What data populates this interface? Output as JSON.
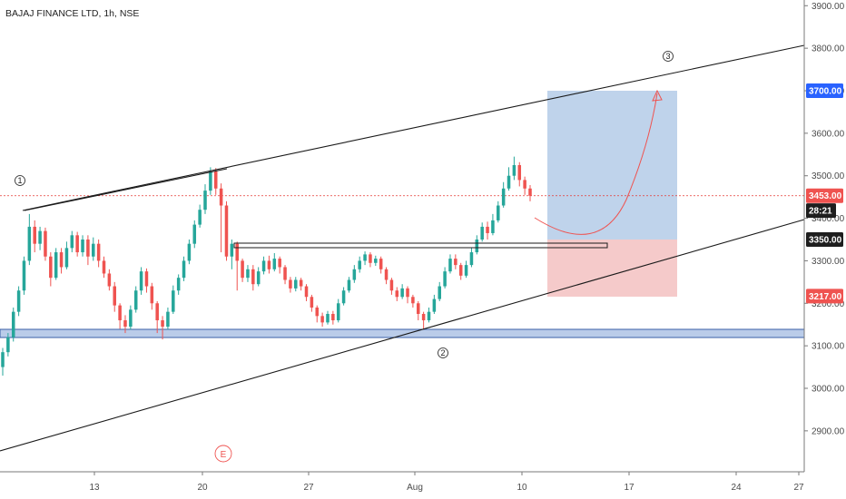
{
  "title": "BAJAJ FINANCE LTD, 1h, NSE",
  "colors": {
    "up": "#26a69a",
    "down": "#ef5350",
    "line": "#1a1a1a",
    "support_band": "#b3c6e7",
    "target_zone": "#a9c4e4",
    "stop_zone": "#f2b8b8",
    "current_price": "#e53935",
    "price_tag_blue": "#2962ff",
    "price_tag_dark": "#1e1e1e",
    "price_tag_red": "#ef5350"
  },
  "chart_data": {
    "type": "candlestick",
    "price_axis": {
      "ticks": [
        "3900.00",
        "3800.00",
        "3700.00",
        "3600.00",
        "3500.00",
        "3400.00",
        "3300.00",
        "3200.00",
        "3100.00",
        "3000.00",
        "2900.00"
      ],
      "range": [
        2810,
        3915
      ]
    },
    "time_axis": {
      "ticks": [
        "13",
        "20",
        "27",
        "Aug",
        "10",
        "17",
        "24",
        "27"
      ]
    },
    "price_tags": [
      {
        "label": "3700.00",
        "price": 3700,
        "color": "#2962ff"
      },
      {
        "label": "3453.00",
        "price": 3453,
        "color": "#ef5350"
      },
      {
        "label": "28:21",
        "price": 3418,
        "color": "#1e1e1e"
      },
      {
        "label": "3350.00",
        "price": 3350,
        "color": "#1e1e1e"
      },
      {
        "label": "3217.00",
        "price": 3217,
        "color": "#ef5350"
      }
    ],
    "current_price": 3453,
    "wave_labels": [
      "1",
      "2",
      "3"
    ],
    "event_marker": "E",
    "candles": [
      [
        3050,
        3085,
        3030,
        3095
      ],
      [
        3085,
        3120,
        3075,
        3130
      ],
      [
        3120,
        3180,
        3110,
        3190
      ],
      [
        3180,
        3230,
        3170,
        3240
      ],
      [
        3230,
        3300,
        3220,
        3310
      ],
      [
        3300,
        3380,
        3290,
        3410
      ],
      [
        3380,
        3340,
        3320,
        3395
      ],
      [
        3340,
        3370,
        3325,
        3380
      ],
      [
        3370,
        3310,
        3300,
        3378
      ],
      [
        3310,
        3260,
        3240,
        3320
      ],
      [
        3260,
        3320,
        3255,
        3330
      ],
      [
        3320,
        3285,
        3270,
        3330
      ],
      [
        3285,
        3330,
        3280,
        3345
      ],
      [
        3330,
        3360,
        3320,
        3370
      ],
      [
        3360,
        3320,
        3310,
        3368
      ],
      [
        3320,
        3350,
        3310,
        3360
      ],
      [
        3350,
        3310,
        3290,
        3360
      ],
      [
        3310,
        3340,
        3300,
        3355
      ],
      [
        3340,
        3300,
        3285,
        3350
      ],
      [
        3300,
        3270,
        3260,
        3310
      ],
      [
        3270,
        3240,
        3230,
        3280
      ],
      [
        3240,
        3195,
        3180,
        3250
      ],
      [
        3195,
        3160,
        3140,
        3200
      ],
      [
        3160,
        3145,
        3130,
        3172
      ],
      [
        3145,
        3185,
        3138,
        3195
      ],
      [
        3185,
        3230,
        3178,
        3240
      ],
      [
        3230,
        3275,
        3220,
        3285
      ],
      [
        3275,
        3240,
        3225,
        3282
      ],
      [
        3240,
        3200,
        3185,
        3248
      ],
      [
        3200,
        3160,
        3130,
        3205
      ],
      [
        3160,
        3145,
        3115,
        3170
      ],
      [
        3145,
        3180,
        3138,
        3190
      ],
      [
        3180,
        3230,
        3175,
        3242
      ],
      [
        3230,
        3260,
        3220,
        3268
      ],
      [
        3260,
        3300,
        3252,
        3310
      ],
      [
        3300,
        3340,
        3292,
        3350
      ],
      [
        3340,
        3385,
        3330,
        3395
      ],
      [
        3385,
        3420,
        3378,
        3432
      ],
      [
        3420,
        3465,
        3410,
        3480
      ],
      [
        3465,
        3510,
        3455,
        3520
      ],
      [
        3510,
        3470,
        3455,
        3518
      ],
      [
        3470,
        3430,
        3320,
        3482
      ],
      [
        3430,
        3310,
        3300,
        3440
      ],
      [
        3310,
        3340,
        3280,
        3350
      ],
      [
        3340,
        3300,
        3230,
        3345
      ],
      [
        3300,
        3260,
        3250,
        3305
      ],
      [
        3260,
        3280,
        3250,
        3290
      ],
      [
        3280,
        3245,
        3230,
        3290
      ],
      [
        3245,
        3275,
        3240,
        3285
      ],
      [
        3275,
        3300,
        3268,
        3310
      ],
      [
        3300,
        3280,
        3270,
        3312
      ],
      [
        3280,
        3305,
        3275,
        3318
      ],
      [
        3305,
        3285,
        3270,
        3310
      ],
      [
        3285,
        3255,
        3245,
        3290
      ],
      [
        3255,
        3235,
        3225,
        3262
      ],
      [
        3235,
        3255,
        3228,
        3262
      ],
      [
        3255,
        3240,
        3230,
        3260
      ],
      [
        3240,
        3215,
        3205,
        3245
      ],
      [
        3215,
        3190,
        3180,
        3220
      ],
      [
        3190,
        3170,
        3155,
        3195
      ],
      [
        3170,
        3155,
        3145,
        3178
      ],
      [
        3155,
        3175,
        3150,
        3182
      ],
      [
        3175,
        3160,
        3150,
        3182
      ],
      [
        3160,
        3200,
        3155,
        3210
      ],
      [
        3200,
        3230,
        3195,
        3238
      ],
      [
        3230,
        3255,
        3225,
        3262
      ],
      [
        3255,
        3280,
        3248,
        3290
      ],
      [
        3280,
        3300,
        3272,
        3310
      ],
      [
        3300,
        3315,
        3290,
        3322
      ],
      [
        3315,
        3295,
        3285,
        3320
      ],
      [
        3295,
        3305,
        3288,
        3312
      ],
      [
        3305,
        3280,
        3270,
        3310
      ],
      [
        3280,
        3255,
        3245,
        3285
      ],
      [
        3255,
        3230,
        3220,
        3260
      ],
      [
        3230,
        3215,
        3205,
        3238
      ],
      [
        3215,
        3235,
        3210,
        3245
      ],
      [
        3235,
        3215,
        3200,
        3240
      ],
      [
        3215,
        3200,
        3190,
        3220
      ],
      [
        3200,
        3175,
        3160,
        3205
      ],
      [
        3175,
        3160,
        3140,
        3180
      ],
      [
        3160,
        3180,
        3155,
        3190
      ],
      [
        3180,
        3210,
        3175,
        3220
      ],
      [
        3210,
        3240,
        3205,
        3250
      ],
      [
        3240,
        3275,
        3235,
        3285
      ],
      [
        3275,
        3305,
        3270,
        3315
      ],
      [
        3305,
        3290,
        3280,
        3315
      ],
      [
        3290,
        3265,
        3255,
        3295
      ],
      [
        3265,
        3290,
        3260,
        3300
      ],
      [
        3290,
        3320,
        3285,
        3330
      ],
      [
        3320,
        3350,
        3315,
        3360
      ],
      [
        3350,
        3380,
        3345,
        3390
      ],
      [
        3380,
        3365,
        3350,
        3392
      ],
      [
        3365,
        3395,
        3360,
        3410
      ],
      [
        3395,
        3430,
        3390,
        3440
      ],
      [
        3430,
        3470,
        3425,
        3485
      ],
      [
        3470,
        3500,
        3465,
        3520
      ],
      [
        3500,
        3525,
        3490,
        3545
      ],
      [
        3525,
        3490,
        3475,
        3532
      ],
      [
        3490,
        3470,
        3455,
        3498
      ],
      [
        3470,
        3453,
        3440,
        3478
      ]
    ]
  }
}
